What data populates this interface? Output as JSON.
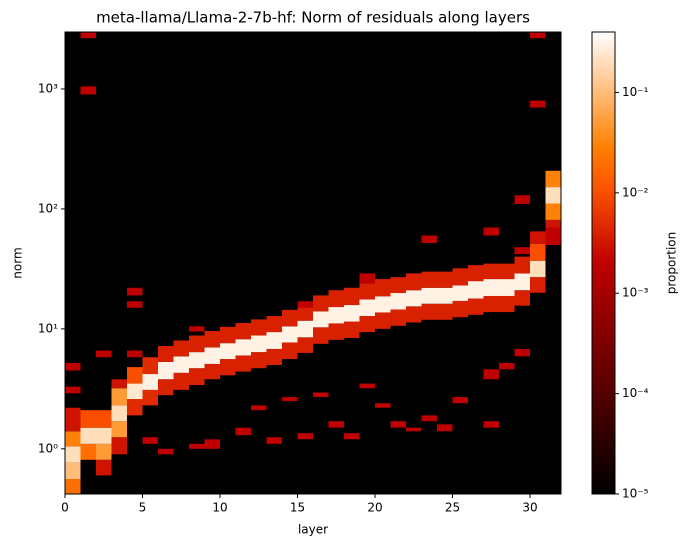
{
  "chart_data": {
    "type": "heatmap",
    "title": "meta-llama/Llama-2-7b-hf: Norm of residuals along layers",
    "x_label": "layer",
    "y_label": "norm",
    "colorbar_label": "proportion",
    "xlim": [
      0,
      32
    ],
    "xticks": [
      0,
      5,
      10,
      15,
      20,
      25,
      30
    ],
    "ylim": [
      0.42,
      2985
    ],
    "y_scale": "log",
    "yticks": [
      {
        "value": 1,
        "label": "10⁰"
      },
      {
        "value": 10,
        "label": "10¹"
      },
      {
        "value": 100,
        "label": "10²"
      },
      {
        "value": 1000,
        "label": "10³"
      }
    ],
    "clim": [
      1e-05,
      0.4
    ],
    "color_scale": "log",
    "colormap": "gist_heat",
    "background": "#000000",
    "cticks": [
      {
        "value": 1e-05,
        "label": "10⁻⁵"
      },
      {
        "value": 0.0001,
        "label": "10⁻⁴"
      },
      {
        "value": 0.001,
        "label": "10⁻³"
      },
      {
        "value": 0.01,
        "label": "10⁻²"
      },
      {
        "value": 0.1,
        "label": "10⁻¹"
      }
    ],
    "cells": [
      [
        0,
        0.42,
        0.56,
        0.02
      ],
      [
        0,
        0.56,
        0.77,
        0.1
      ],
      [
        0,
        0.77,
        1.05,
        0.2
      ],
      [
        0,
        1.05,
        1.4,
        0.03
      ],
      [
        0,
        1.4,
        2.2,
        0.003
      ],
      [
        1,
        0.81,
        1.1,
        0.02
      ],
      [
        1,
        1.1,
        1.5,
        0.2
      ],
      [
        1,
        1.5,
        2.1,
        0.01
      ],
      [
        2,
        0.6,
        0.81,
        0.003
      ],
      [
        2,
        0.81,
        1.1,
        0.05
      ],
      [
        2,
        1.1,
        1.5,
        0.2
      ],
      [
        2,
        1.5,
        2.1,
        0.01
      ],
      [
        3,
        0.9,
        1.25,
        0.003
      ],
      [
        3,
        1.25,
        1.7,
        0.05
      ],
      [
        3,
        1.7,
        2.3,
        0.2
      ],
      [
        3,
        2.3,
        3.2,
        0.05
      ],
      [
        3,
        3.2,
        3.8,
        0.003
      ],
      [
        4,
        1.9,
        2.6,
        0.005
      ],
      [
        4,
        2.6,
        3.5,
        0.25
      ],
      [
        4,
        3.5,
        4.8,
        0.01
      ],
      [
        5,
        2.3,
        3.1,
        0.005
      ],
      [
        5,
        3.1,
        4.2,
        0.3
      ],
      [
        5,
        4.2,
        5.8,
        0.005
      ],
      [
        6,
        2.8,
        3.8,
        0.004
      ],
      [
        6,
        3.8,
        5.3,
        0.3
      ],
      [
        6,
        5.3,
        7.2,
        0.004
      ],
      [
        7,
        3.1,
        4.3,
        0.004
      ],
      [
        7,
        4.3,
        5.9,
        0.3
      ],
      [
        7,
        5.9,
        8.0,
        0.004
      ],
      [
        8,
        3.4,
        4.7,
        0.004
      ],
      [
        8,
        4.7,
        6.4,
        0.3
      ],
      [
        8,
        6.4,
        8.8,
        0.004
      ],
      [
        9,
        3.8,
        5.1,
        0.004
      ],
      [
        9,
        5.1,
        7.0,
        0.3
      ],
      [
        9,
        7.0,
        9.6,
        0.004
      ],
      [
        10,
        4.1,
        5.6,
        0.004
      ],
      [
        10,
        5.6,
        7.6,
        0.3
      ],
      [
        10,
        7.6,
        10.4,
        0.004
      ],
      [
        11,
        4.4,
        6.0,
        0.004
      ],
      [
        11,
        6.0,
        8.2,
        0.3
      ],
      [
        11,
        8.2,
        11.2,
        0.004
      ],
      [
        12,
        4.7,
        6.4,
        0.004
      ],
      [
        12,
        6.4,
        8.8,
        0.3
      ],
      [
        12,
        8.8,
        12,
        0.004
      ],
      [
        13,
        5.0,
        6.8,
        0.004
      ],
      [
        13,
        6.8,
        9.4,
        0.3
      ],
      [
        13,
        9.4,
        12.8,
        0.004
      ],
      [
        14,
        5.6,
        7.7,
        0.004
      ],
      [
        14,
        7.7,
        10.5,
        0.3
      ],
      [
        14,
        10.5,
        14.4,
        0.004
      ],
      [
        15,
        6.3,
        8.5,
        0.004
      ],
      [
        15,
        8.5,
        11.7,
        0.3
      ],
      [
        15,
        11.7,
        16,
        0.004
      ],
      [
        16,
        7.5,
        10.3,
        0.004
      ],
      [
        16,
        10.3,
        14,
        0.3
      ],
      [
        16,
        14,
        19,
        0.004
      ],
      [
        17,
        8.1,
        11.1,
        0.004
      ],
      [
        17,
        11.1,
        15.2,
        0.3
      ],
      [
        17,
        15.2,
        21,
        0.004
      ],
      [
        18,
        8.4,
        11.5,
        0.004
      ],
      [
        18,
        11.5,
        15.8,
        0.3
      ],
      [
        18,
        15.8,
        22,
        0.004
      ],
      [
        19,
        9.4,
        12.8,
        0.004
      ],
      [
        19,
        12.8,
        17.6,
        0.3
      ],
      [
        19,
        17.6,
        24,
        0.004
      ],
      [
        20,
        10,
        13.7,
        0.004
      ],
      [
        20,
        13.7,
        18.7,
        0.3
      ],
      [
        20,
        18.7,
        26,
        0.004
      ],
      [
        21,
        10.6,
        14.5,
        0.004
      ],
      [
        21,
        14.5,
        19.9,
        0.3
      ],
      [
        21,
        19.9,
        27,
        0.004
      ],
      [
        22,
        11.3,
        15.4,
        0.004
      ],
      [
        22,
        15.4,
        21,
        0.3
      ],
      [
        22,
        21,
        29,
        0.004
      ],
      [
        23,
        11.9,
        16.2,
        0.004
      ],
      [
        23,
        16.2,
        22,
        0.3
      ],
      [
        23,
        22,
        30,
        0.004
      ],
      [
        24,
        11.9,
        16.2,
        0.004
      ],
      [
        24,
        16.2,
        22,
        0.3
      ],
      [
        24,
        22,
        30,
        0.004
      ],
      [
        25,
        12.5,
        17.1,
        0.004
      ],
      [
        25,
        17.1,
        23,
        0.3
      ],
      [
        25,
        23,
        32,
        0.004
      ],
      [
        26,
        13.1,
        17.9,
        0.004
      ],
      [
        26,
        17.9,
        25,
        0.3
      ],
      [
        26,
        25,
        34,
        0.004
      ],
      [
        27,
        13.8,
        18.8,
        0.004
      ],
      [
        27,
        18.8,
        26,
        0.3
      ],
      [
        27,
        26,
        35,
        0.004
      ],
      [
        28,
        13.8,
        18.8,
        0.004
      ],
      [
        28,
        18.8,
        26,
        0.3
      ],
      [
        28,
        26,
        35,
        0.004
      ],
      [
        29,
        15.6,
        21,
        0.004
      ],
      [
        29,
        21,
        29,
        0.3
      ],
      [
        29,
        29,
        40,
        0.004
      ],
      [
        30,
        20,
        27,
        0.004
      ],
      [
        30,
        27,
        37,
        0.2
      ],
      [
        30,
        37,
        51,
        0.01
      ],
      [
        30,
        51,
        65,
        0.003
      ],
      [
        31,
        55,
        81,
        0.003
      ],
      [
        31,
        81,
        111,
        0.03
      ],
      [
        31,
        111,
        152,
        0.2
      ],
      [
        31,
        152,
        208,
        0.03
      ],
      [
        1,
        2650,
        2950,
        0.002
      ],
      [
        1,
        900,
        1050,
        0.002
      ],
      [
        30,
        2650,
        2950,
        0.002
      ],
      [
        30,
        700,
        800,
        0.002
      ],
      [
        29,
        110,
        130,
        0.002
      ],
      [
        31,
        50,
        70,
        0.002
      ],
      [
        27,
        60,
        70,
        0.002
      ],
      [
        23,
        52,
        60,
        0.002
      ],
      [
        4,
        19,
        22,
        0.002
      ],
      [
        4,
        15,
        17,
        0.002
      ],
      [
        0,
        4.5,
        5.2,
        0.002
      ],
      [
        0,
        2.9,
        3.3,
        0.002
      ],
      [
        2,
        5.8,
        6.6,
        0.002
      ],
      [
        4,
        5.8,
        6.6,
        0.002
      ],
      [
        8,
        9.5,
        10.5,
        0.002
      ],
      [
        15,
        15,
        17,
        0.002
      ],
      [
        19,
        24,
        29,
        0.002
      ],
      [
        29,
        42,
        48,
        0.002
      ],
      [
        29,
        5.9,
        6.8,
        0.002
      ],
      [
        27,
        3.8,
        4.6,
        0.002
      ],
      [
        28,
        4.6,
        5.2,
        0.002
      ],
      [
        5,
        1.1,
        1.25,
        0.002
      ],
      [
        6,
        0.9,
        1.0,
        0.002
      ],
      [
        8,
        1.0,
        1.1,
        0.002
      ],
      [
        9,
        1.0,
        1.2,
        0.002
      ],
      [
        11,
        1.3,
        1.5,
        0.002
      ],
      [
        12,
        2.1,
        2.3,
        0.002
      ],
      [
        13,
        1.1,
        1.25,
        0.002
      ],
      [
        14,
        2.5,
        2.7,
        0.002
      ],
      [
        15,
        1.2,
        1.35,
        0.002
      ],
      [
        16,
        2.7,
        2.95,
        0.002
      ],
      [
        18,
        1.2,
        1.35,
        0.002
      ],
      [
        19,
        3.2,
        3.5,
        0.002
      ],
      [
        21,
        1.5,
        1.7,
        0.002
      ],
      [
        22,
        1.4,
        1.5,
        0.002
      ],
      [
        23,
        1.7,
        1.9,
        0.002
      ],
      [
        24,
        1.4,
        1.6,
        0.002
      ],
      [
        25,
        2.4,
        2.7,
        0.002
      ],
      [
        27,
        1.5,
        1.7,
        0.002
      ],
      [
        20,
        2.2,
        2.4,
        0.002
      ],
      [
        17,
        1.5,
        1.7,
        0.002
      ]
    ]
  }
}
